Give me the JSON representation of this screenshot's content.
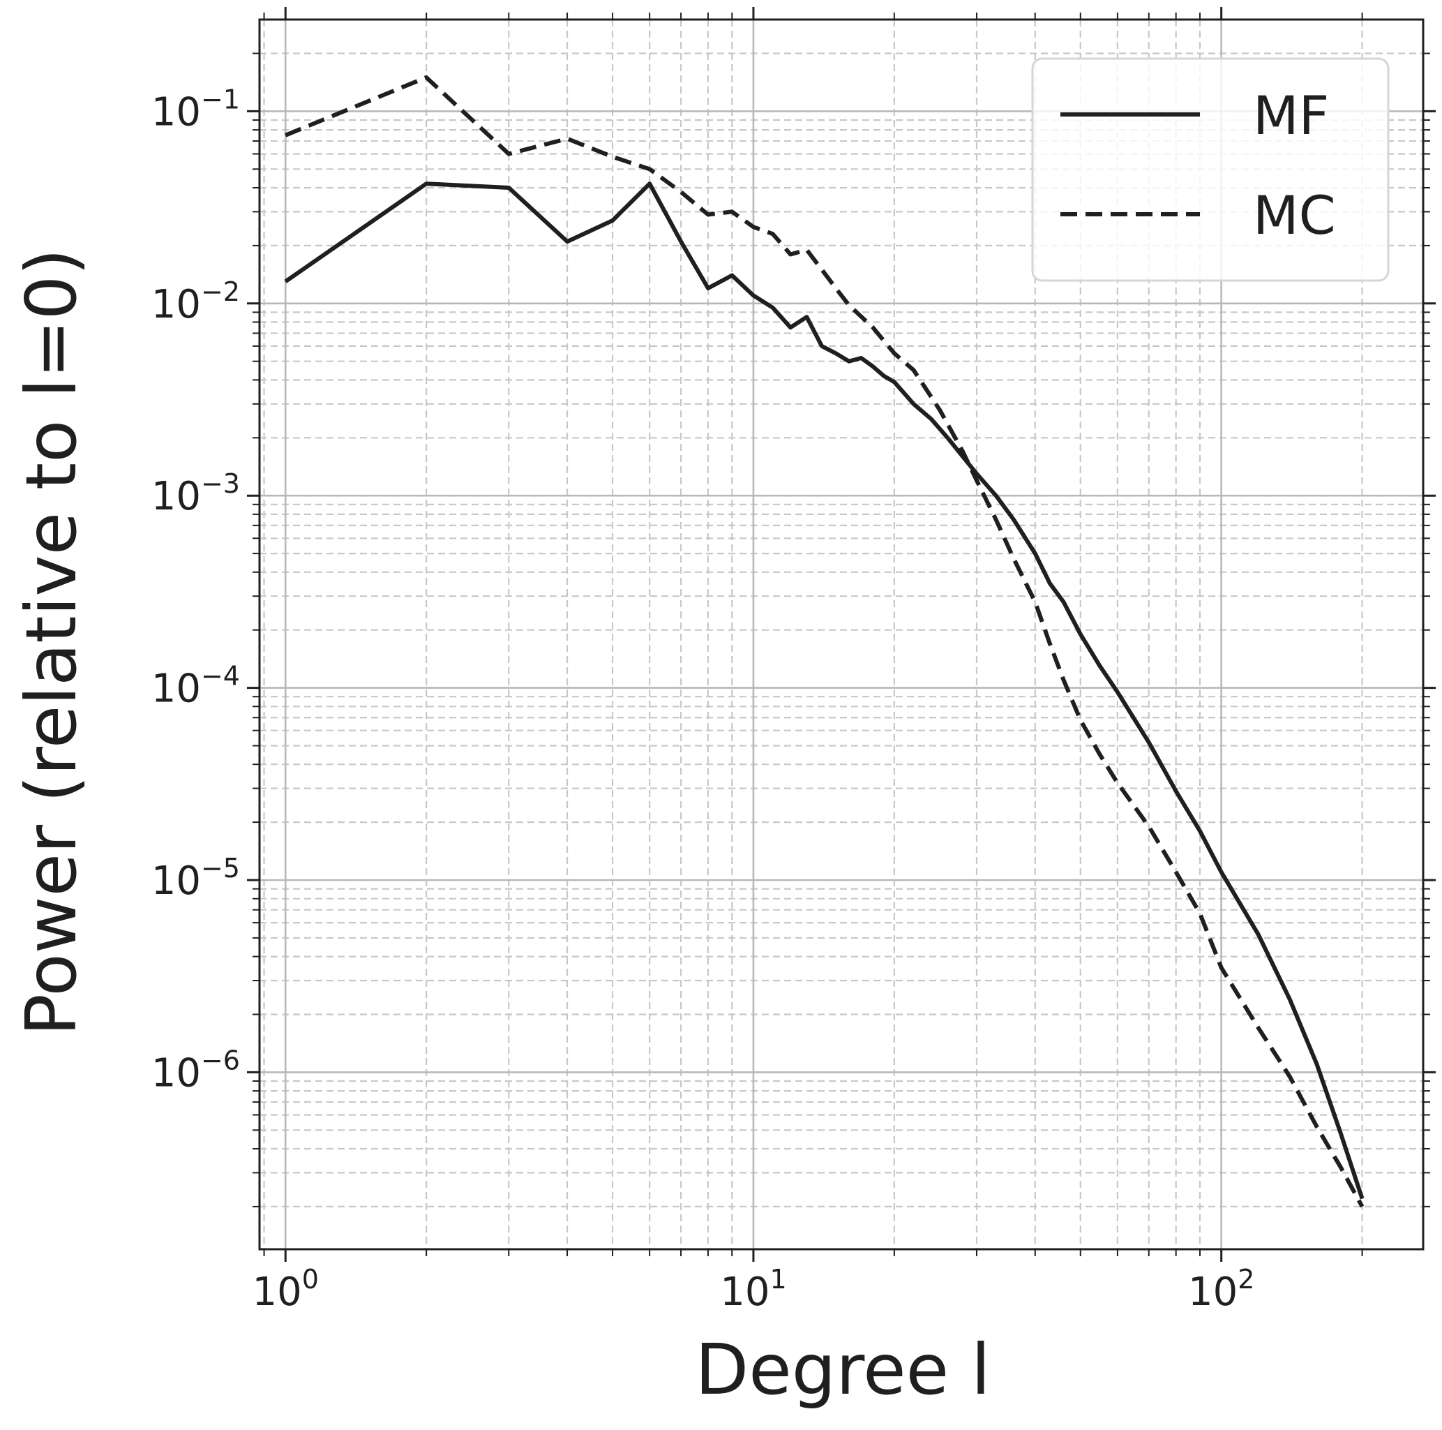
{
  "chart_data": {
    "type": "line",
    "title": "",
    "xlabel": "Degree l",
    "ylabel": "Power (relative to l=0)",
    "x_scale": "log",
    "y_scale": "log",
    "xlim": [
      0.88,
      270
    ],
    "ylim": [
      1.2e-07,
      0.3
    ],
    "x_ticks": [
      {
        "value": 1,
        "base": "10",
        "exp": "0"
      },
      {
        "value": 10,
        "base": "10",
        "exp": "1"
      },
      {
        "value": 100,
        "base": "10",
        "exp": "2"
      }
    ],
    "y_ticks": [
      {
        "value": 0.1,
        "base": "10",
        "exp": "−1"
      },
      {
        "value": 0.01,
        "base": "10",
        "exp": "−2"
      },
      {
        "value": 0.001,
        "base": "10",
        "exp": "−3"
      },
      {
        "value": 0.0001,
        "base": "10",
        "exp": "−4"
      },
      {
        "value": 1e-05,
        "base": "10",
        "exp": "−5"
      },
      {
        "value": 1e-06,
        "base": "10",
        "exp": "−6"
      }
    ],
    "grid": true,
    "legend_position": "top-right",
    "series": [
      {
        "name": "MF",
        "style": "solid",
        "x": [
          1,
          2,
          3,
          4,
          5,
          6,
          7,
          8,
          9,
          10,
          11,
          12,
          13,
          14,
          15,
          16,
          17,
          18,
          19,
          20,
          22,
          24,
          26,
          28,
          30,
          33,
          36,
          40,
          43,
          46,
          50,
          55,
          60,
          70,
          80,
          90,
          100,
          120,
          140,
          160,
          180,
          200
        ],
        "values": [
          0.013,
          0.042,
          0.04,
          0.021,
          0.027,
          0.042,
          0.021,
          0.012,
          0.014,
          0.011,
          0.0095,
          0.0075,
          0.0085,
          0.006,
          0.0055,
          0.005,
          0.0052,
          0.0047,
          0.0042,
          0.0039,
          0.003,
          0.0025,
          0.002,
          0.0016,
          0.0013,
          0.001,
          0.00075,
          0.0005,
          0.00035,
          0.00028,
          0.00019,
          0.00013,
          9.5e-05,
          5.2e-05,
          2.9e-05,
          1.8e-05,
          1.1e-05,
          5.2e-06,
          2.4e-06,
          1.1e-06,
          4.8e-07,
          2.2e-07
        ]
      },
      {
        "name": "MC",
        "style": "dashed",
        "x": [
          1,
          2,
          3,
          4,
          5,
          6,
          7,
          8,
          9,
          10,
          11,
          12,
          13,
          14,
          15,
          16,
          18,
          20,
          22,
          25,
          28,
          30,
          33,
          36,
          40,
          43,
          46,
          50,
          55,
          60,
          70,
          80,
          90,
          100,
          120,
          140,
          160,
          180,
          200
        ],
        "values": [
          0.075,
          0.15,
          0.06,
          0.072,
          0.058,
          0.05,
          0.038,
          0.029,
          0.03,
          0.025,
          0.023,
          0.018,
          0.019,
          0.015,
          0.012,
          0.0098,
          0.0075,
          0.0055,
          0.0045,
          0.0028,
          0.0017,
          0.0012,
          0.00075,
          0.00047,
          0.00028,
          0.00017,
          0.00011,
          6.8e-05,
          4.5e-05,
          3.2e-05,
          1.9e-05,
          1.1e-05,
          6.7e-06,
          3.5e-06,
          1.7e-06,
          9.5e-07,
          5.2e-07,
          3.2e-07,
          2e-07
        ]
      }
    ]
  }
}
